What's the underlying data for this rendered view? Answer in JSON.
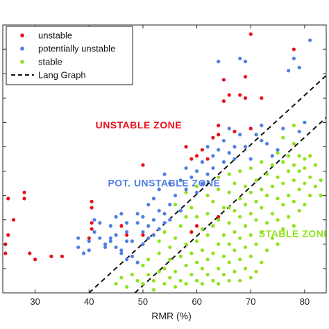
{
  "chart_data": {
    "type": "scatter",
    "xlabel": "RMR (%)",
    "ylabel": "",
    "xlim": [
      24,
      84
    ],
    "ylim": [
      0,
      44
    ],
    "x_ticks": [
      30,
      40,
      50,
      60,
      70,
      80
    ],
    "x_tick_labels": [
      "30",
      "40",
      "50",
      "60",
      "70",
      "80"
    ],
    "grid": false,
    "legend_position": "top-left",
    "colors": {
      "unstable": "#e8111a",
      "potentially_unstable": "#4f7fe3",
      "stable": "#8fe21e",
      "lang_graph": "#111111"
    },
    "legend": [
      {
        "label": "unstable",
        "kind": "marker",
        "color": "#e8111a"
      },
      {
        "label": "potentially unstable",
        "kind": "marker",
        "color": "#4f7fe3"
      },
      {
        "label": "stable",
        "kind": "marker",
        "color": "#8fe21e"
      },
      {
        "label": "Lang Graph",
        "kind": "dashed-line",
        "color": "#111111"
      }
    ],
    "annotations": [
      {
        "text": "UNSTABLE ZONE",
        "x": 41.2,
        "y": 27.0,
        "color": "#e8111a"
      },
      {
        "text": "POT. UNSTABLE ZONE",
        "x": 43.5,
        "y": 17.5,
        "color": "#4f7fe3"
      },
      {
        "text": "STABLE ZONE",
        "x": 71.5,
        "y": 9.2,
        "color": "#8fe21e"
      }
    ],
    "lang_graph": [
      {
        "x1": 40,
        "y1": 0,
        "x2": 84,
        "y2": 35.7
      },
      {
        "x1": 48.5,
        "y1": 0,
        "x2": 84,
        "y2": 28.8
      }
    ],
    "series": [
      {
        "name": "unstable",
        "points": [
          [
            24.5,
            8.0
          ],
          [
            25,
            9.5
          ],
          [
            25,
            15.5
          ],
          [
            28,
            16.5
          ],
          [
            28,
            15.5
          ],
          [
            26,
            12.0
          ],
          [
            24.5,
            6.5
          ],
          [
            29,
            6.5
          ],
          [
            30,
            5.5
          ],
          [
            33,
            6.0
          ],
          [
            35,
            6.0
          ],
          [
            40.5,
            11.5
          ],
          [
            40,
            9.0
          ],
          [
            40.5,
            10.5
          ],
          [
            40.5,
            15.0
          ],
          [
            40.5,
            14.0
          ],
          [
            50,
            21.0
          ],
          [
            46,
            11.0
          ],
          [
            47,
            9.5
          ],
          [
            50,
            9.5
          ],
          [
            58,
            24.0
          ],
          [
            59,
            22.0
          ],
          [
            60,
            22.5
          ],
          [
            61,
            23.5
          ],
          [
            62,
            22.0
          ],
          [
            63,
            25.5
          ],
          [
            64,
            26.0
          ],
          [
            64,
            27.5
          ],
          [
            65,
            35.0
          ],
          [
            65,
            31.5
          ],
          [
            66,
            32.5
          ],
          [
            67,
            26.5
          ],
          [
            68,
            32.5
          ],
          [
            69,
            35.5
          ],
          [
            69,
            32.0
          ],
          [
            70,
            42.5
          ],
          [
            70,
            27.0
          ],
          [
            78,
            40.0
          ],
          [
            72,
            32.0
          ],
          [
            59,
            10.0
          ],
          [
            60,
            11.0
          ],
          [
            64,
            12.5
          ]
        ]
      },
      {
        "name": "potentially unstable",
        "points": [
          [
            38,
            9.0
          ],
          [
            38,
            7.5
          ],
          [
            39,
            6.5
          ],
          [
            40,
            8.5
          ],
          [
            40,
            7.0
          ],
          [
            41,
            12.0
          ],
          [
            41,
            10.0
          ],
          [
            42,
            11.5
          ],
          [
            42,
            9.0
          ],
          [
            43,
            7.5
          ],
          [
            43,
            8.0
          ],
          [
            44,
            8.5
          ],
          [
            44,
            11.0
          ],
          [
            44,
            9.0
          ],
          [
            45,
            9.5
          ],
          [
            45,
            7.5
          ],
          [
            45,
            12.5
          ],
          [
            46,
            6.5
          ],
          [
            46,
            7.0
          ],
          [
            46,
            13.0
          ],
          [
            47,
            11.5
          ],
          [
            47,
            10.0
          ],
          [
            47,
            8.5
          ],
          [
            47,
            5.5
          ],
          [
            48,
            8.5
          ],
          [
            48,
            6.0
          ],
          [
            49,
            13.0
          ],
          [
            49,
            11.5
          ],
          [
            49,
            5.0
          ],
          [
            50,
            12.5
          ],
          [
            50,
            10.0
          ],
          [
            50,
            8.0
          ],
          [
            51,
            9.0
          ],
          [
            51,
            11.0
          ],
          [
            51,
            14.5
          ],
          [
            52,
            12.0
          ],
          [
            52,
            9.5
          ],
          [
            52,
            15.5
          ],
          [
            53,
            10.5
          ],
          [
            53,
            13.5
          ],
          [
            53,
            17.0
          ],
          [
            54,
            13.0
          ],
          [
            54,
            11.5
          ],
          [
            54,
            19.5
          ],
          [
            55,
            14.5
          ],
          [
            55,
            12.0
          ],
          [
            55,
            18.0
          ],
          [
            56,
            16.0
          ],
          [
            57,
            13.5
          ],
          [
            57,
            18.5
          ],
          [
            58,
            17.0
          ],
          [
            58,
            20.5
          ],
          [
            59,
            19.0
          ],
          [
            60,
            16.5
          ],
          [
            60,
            20.0
          ],
          [
            61,
            18.0
          ],
          [
            61,
            21.5
          ],
          [
            62,
            19.5
          ],
          [
            62,
            24.0
          ],
          [
            63,
            20.5
          ],
          [
            63,
            22.5
          ],
          [
            64,
            23.5
          ],
          [
            64,
            38.0
          ],
          [
            65,
            25.0
          ],
          [
            65,
            21.5
          ],
          [
            66,
            27.0
          ],
          [
            66,
            23.0
          ],
          [
            67,
            24.0
          ],
          [
            67,
            22.0
          ],
          [
            68,
            26.0
          ],
          [
            68,
            38.5
          ],
          [
            69,
            24.0
          ],
          [
            69,
            38.0
          ],
          [
            70,
            22.0
          ],
          [
            71,
            26.0
          ],
          [
            72,
            25.0
          ],
          [
            72,
            27.5
          ],
          [
            73,
            24.5
          ],
          [
            74,
            22.5
          ],
          [
            75,
            23.5
          ],
          [
            76,
            27.0
          ],
          [
            77,
            36.5
          ],
          [
            78,
            38.5
          ],
          [
            79,
            37.0
          ],
          [
            79,
            26.5
          ],
          [
            80,
            28.0
          ],
          [
            81,
            41.5
          ]
        ]
      },
      {
        "name": "stable",
        "points": [
          [
            45,
            1.5
          ],
          [
            46,
            2.5
          ],
          [
            47,
            1.0
          ],
          [
            48,
            3.0
          ],
          [
            49,
            2.0
          ],
          [
            50,
            4.5
          ],
          [
            50,
            1.5
          ],
          [
            51,
            3.0
          ],
          [
            51,
            5.5
          ],
          [
            52,
            0.5
          ],
          [
            52,
            2.0
          ],
          [
            53,
            6.5
          ],
          [
            53,
            3.5
          ],
          [
            54,
            4.0
          ],
          [
            54,
            1.5
          ],
          [
            55,
            5.5
          ],
          [
            55,
            2.5
          ],
          [
            55,
            7.5
          ],
          [
            56,
            1.0
          ],
          [
            56,
            3.5
          ],
          [
            56,
            9.0
          ],
          [
            57,
            6.0
          ],
          [
            57,
            2.0
          ],
          [
            57,
            11.0
          ],
          [
            57,
            13.5
          ],
          [
            58,
            4.5
          ],
          [
            58,
            8.0
          ],
          [
            58,
            1.5
          ],
          [
            58,
            12.5
          ],
          [
            59,
            6.5
          ],
          [
            59,
            3.0
          ],
          [
            59,
            10.0
          ],
          [
            59,
            14.0
          ],
          [
            60,
            5.0
          ],
          [
            60,
            2.0
          ],
          [
            60,
            8.5
          ],
          [
            60,
            12.5
          ],
          [
            61,
            4.0
          ],
          [
            61,
            7.0
          ],
          [
            61,
            1.5
          ],
          [
            61,
            10.5
          ],
          [
            62,
            5.5
          ],
          [
            62,
            3.0
          ],
          [
            62,
            9.5
          ],
          [
            62,
            13.0
          ],
          [
            63,
            6.5
          ],
          [
            63,
            2.0
          ],
          [
            63,
            11.0
          ],
          [
            63,
            15.0
          ],
          [
            64,
            4.0
          ],
          [
            64,
            8.0
          ],
          [
            64,
            1.5
          ],
          [
            64,
            12.0
          ],
          [
            64,
            17.0
          ],
          [
            65,
            3.0
          ],
          [
            65,
            6.0
          ],
          [
            65,
            9.5
          ],
          [
            65,
            14.0
          ],
          [
            66,
            2.0
          ],
          [
            66,
            5.0
          ],
          [
            66,
            8.0
          ],
          [
            66,
            11.5
          ],
          [
            66,
            16.5
          ],
          [
            66,
            19.5
          ],
          [
            67,
            3.5
          ],
          [
            67,
            7.0
          ],
          [
            67,
            10.0
          ],
          [
            67,
            13.5
          ],
          [
            67,
            18.0
          ],
          [
            68,
            2.0
          ],
          [
            68,
            5.5
          ],
          [
            68,
            9.0
          ],
          [
            68,
            12.5
          ],
          [
            68,
            15.5
          ],
          [
            68,
            20.0
          ],
          [
            69,
            4.0
          ],
          [
            69,
            7.5
          ],
          [
            69,
            11.0
          ],
          [
            69,
            14.5
          ],
          [
            69,
            17.5
          ],
          [
            70,
            2.5
          ],
          [
            70,
            6.0
          ],
          [
            70,
            9.5
          ],
          [
            70,
            13.0
          ],
          [
            70,
            16.5
          ],
          [
            70,
            20.5
          ],
          [
            71,
            3.5
          ],
          [
            71,
            8.0
          ],
          [
            71,
            12.0
          ],
          [
            71,
            15.0
          ],
          [
            71,
            18.5
          ],
          [
            72,
            5.0
          ],
          [
            72,
            10.0
          ],
          [
            72,
            14.0
          ],
          [
            72,
            17.0
          ],
          [
            72,
            21.5
          ],
          [
            73,
            7.0
          ],
          [
            73,
            11.5
          ],
          [
            73,
            16.0
          ],
          [
            73,
            19.5
          ],
          [
            74,
            9.0
          ],
          [
            74,
            13.0
          ],
          [
            74,
            17.5
          ],
          [
            74,
            21.0
          ],
          [
            75,
            8.0
          ],
          [
            75,
            12.0
          ],
          [
            75,
            15.5
          ],
          [
            75,
            19.0
          ],
          [
            75,
            23.0
          ],
          [
            76,
            10.5
          ],
          [
            76,
            14.5
          ],
          [
            76,
            18.0
          ],
          [
            76,
            21.5
          ],
          [
            76,
            25.5
          ],
          [
            77,
            12.5
          ],
          [
            77,
            16.0
          ],
          [
            77,
            20.0
          ],
          [
            77,
            22.5
          ],
          [
            78,
            11.0
          ],
          [
            78,
            15.0
          ],
          [
            78,
            18.5
          ],
          [
            78,
            21.0
          ],
          [
            78,
            24.5
          ],
          [
            78,
            27.5
          ],
          [
            79,
            13.5
          ],
          [
            79,
            17.0
          ],
          [
            79,
            20.0
          ],
          [
            79,
            22.5
          ],
          [
            80,
            14.5
          ],
          [
            80,
            18.0
          ],
          [
            80,
            20.5
          ],
          [
            80,
            22.0
          ],
          [
            81,
            16.0
          ],
          [
            81,
            19.0
          ],
          [
            81,
            22.5
          ],
          [
            82,
            17.5
          ],
          [
            82,
            21.0
          ],
          [
            83,
            18.5
          ],
          [
            83,
            16.0
          ],
          [
            56,
            14.5
          ],
          [
            58,
            16.5
          ],
          [
            60,
            17.5
          ],
          [
            62,
            16.0
          ],
          [
            54,
            10.0
          ],
          [
            53,
            8.5
          ],
          [
            64,
            19.0
          ],
          [
            66,
            14.0
          ]
        ]
      }
    ]
  }
}
